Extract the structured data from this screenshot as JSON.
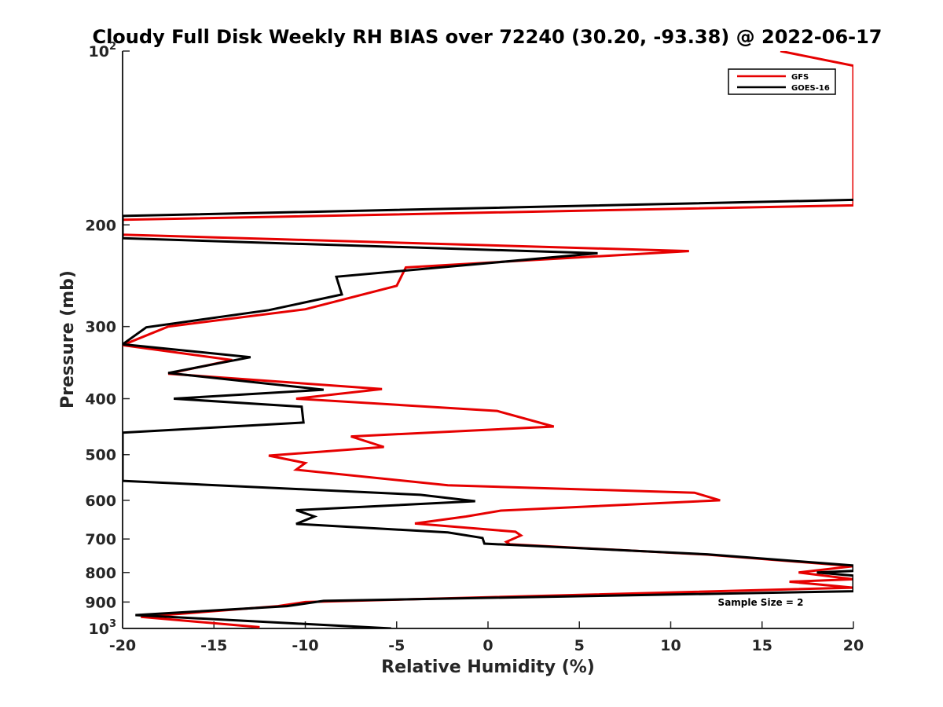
{
  "chart_data": {
    "type": "line",
    "title": "Cloudy Full Disk Weekly RH BIAS over 72240 (30.20, -93.38) @ 2022-06-17",
    "xlabel": "Relative Humidity (%)",
    "ylabel": "Pressure (mb)",
    "xlim": [
      -20,
      20
    ],
    "ylim": [
      100,
      1000
    ],
    "yscale": "log",
    "yreversed": true,
    "x_ticks": [
      -20,
      -15,
      -10,
      -5,
      0,
      5,
      10,
      15,
      20
    ],
    "x_tick_labels": [
      "-20",
      "-15",
      "-10",
      "-5",
      "0",
      "5",
      "10",
      "15",
      "20"
    ],
    "y_ticks": [
      100,
      200,
      300,
      400,
      500,
      600,
      700,
      800,
      900,
      1000
    ],
    "y_tick_labels": [
      {
        "base": "10",
        "exp": "2"
      },
      {
        "base": "200",
        "exp": ""
      },
      {
        "base": "300",
        "exp": ""
      },
      {
        "base": "400",
        "exp": ""
      },
      {
        "base": "500",
        "exp": ""
      },
      {
        "base": "600",
        "exp": ""
      },
      {
        "base": "700",
        "exp": ""
      },
      {
        "base": "800",
        "exp": ""
      },
      {
        "base": "900",
        "exp": ""
      },
      {
        "base": "10",
        "exp": "3"
      }
    ],
    "legend_position": "top-right",
    "annotation": "Sample Size = 2",
    "series": [
      {
        "name": "GFS",
        "color": "#e60000",
        "points": [
          [
            16,
            100
          ],
          [
            20,
            106
          ],
          [
            20,
            185
          ],
          [
            -20,
            196
          ],
          [
            -20,
            208
          ],
          [
            11,
            222
          ],
          [
            -4.5,
            237
          ],
          [
            -5,
            255
          ],
          [
            -10,
            280
          ],
          [
            -17.5,
            300
          ],
          [
            -20,
            323
          ],
          [
            -14,
            343
          ],
          [
            -17.5,
            362
          ],
          [
            -5.8,
            385
          ],
          [
            -10.5,
            400
          ],
          [
            0.5,
            420
          ],
          [
            3.6,
            447
          ],
          [
            -7.5,
            465
          ],
          [
            -5.7,
            485
          ],
          [
            -12,
            502
          ],
          [
            -10,
            517
          ],
          [
            -10.5,
            531
          ],
          [
            -2.2,
            565
          ],
          [
            11.3,
            582
          ],
          [
            12.7,
            600
          ],
          [
            0.7,
            625
          ],
          [
            -1.2,
            640
          ],
          [
            -4,
            658
          ],
          [
            1.5,
            680
          ],
          [
            1.8,
            690
          ],
          [
            1,
            708
          ],
          [
            1.2,
            715
          ],
          [
            12,
            745
          ],
          [
            20,
            780
          ],
          [
            17,
            800
          ],
          [
            20,
            822
          ],
          [
            16.5,
            830
          ],
          [
            20,
            850
          ],
          [
            -10,
            900
          ],
          [
            -11.5,
            915
          ],
          [
            -19,
            955
          ],
          [
            -12.5,
            995
          ]
        ]
      },
      {
        "name": "GOES-16",
        "color": "#000000",
        "points": [
          [
            20,
            181
          ],
          [
            -20,
            193
          ],
          [
            -20,
            211
          ],
          [
            6,
            224
          ],
          [
            -8.3,
            246
          ],
          [
            -8,
            264
          ],
          [
            -12,
            281
          ],
          [
            -18.7,
            301
          ],
          [
            -20,
            322
          ],
          [
            -13,
            339
          ],
          [
            -17.5,
            361
          ],
          [
            -9,
            386
          ],
          [
            -17.2,
            400
          ],
          [
            -10.2,
            413
          ],
          [
            -10.1,
            440
          ],
          [
            -20,
            458
          ],
          [
            -20,
            555
          ],
          [
            -3.7,
            587
          ],
          [
            -0.7,
            602
          ],
          [
            -10.5,
            624
          ],
          [
            -9.5,
            640
          ],
          [
            -10.5,
            659
          ],
          [
            -2.2,
            682
          ],
          [
            -0.3,
            697
          ],
          [
            -0.2,
            713
          ],
          [
            12,
            744
          ],
          [
            20,
            778
          ],
          [
            20,
            795
          ],
          [
            18,
            800
          ],
          [
            20,
            810
          ],
          [
            20,
            862
          ],
          [
            -9,
            896
          ],
          [
            -11,
            915
          ],
          [
            -19.3,
            948
          ],
          [
            -5.3,
            1000
          ]
        ]
      }
    ]
  }
}
